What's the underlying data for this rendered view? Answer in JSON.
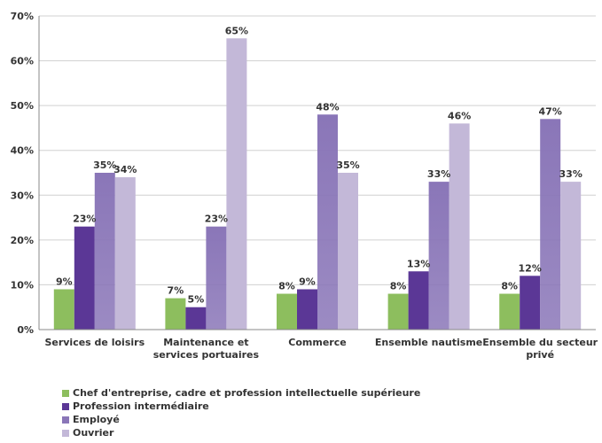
{
  "chart_data": {
    "type": "bar",
    "categories": [
      [
        "Services de loisirs"
      ],
      [
        "Maintenance et",
        "services portuaires"
      ],
      [
        "Commerce"
      ],
      [
        "Ensemble nautisme"
      ],
      [
        "Ensemble du secteur",
        "privé"
      ]
    ],
    "series": [
      {
        "name": "Chef d'entreprise, cadre et profession intellectuelle supérieure",
        "values": [
          9,
          7,
          8,
          8,
          8
        ],
        "labels": [
          "9%",
          "7%",
          "8%",
          "8%",
          "8%"
        ],
        "color": "#8dbe5e"
      },
      {
        "name": "Profession intermédiaire",
        "values": [
          23,
          5,
          9,
          13,
          12
        ],
        "labels": [
          "23%",
          "5%",
          "9%",
          "13%",
          "12%"
        ],
        "color": "#5b3796"
      },
      {
        "name": "Employé",
        "values": [
          35,
          23,
          48,
          33,
          47
        ],
        "labels": [
          "35%",
          "23%",
          "48%",
          "33%",
          "47%"
        ],
        "color": "#8a76b8"
      },
      {
        "name": "Ouvrier",
        "values": [
          34,
          65,
          35,
          46,
          33
        ],
        "labels": [
          "34%",
          "65%",
          "35%",
          "46%",
          "33%"
        ],
        "color": "#c3b8d8"
      }
    ],
    "y_ticks": [
      "0%",
      "10%",
      "20%",
      "30%",
      "40%",
      "50%",
      "60%",
      "70%"
    ],
    "ylim": [
      0,
      70
    ],
    "grid": true,
    "legend_position": "bottom-left"
  }
}
